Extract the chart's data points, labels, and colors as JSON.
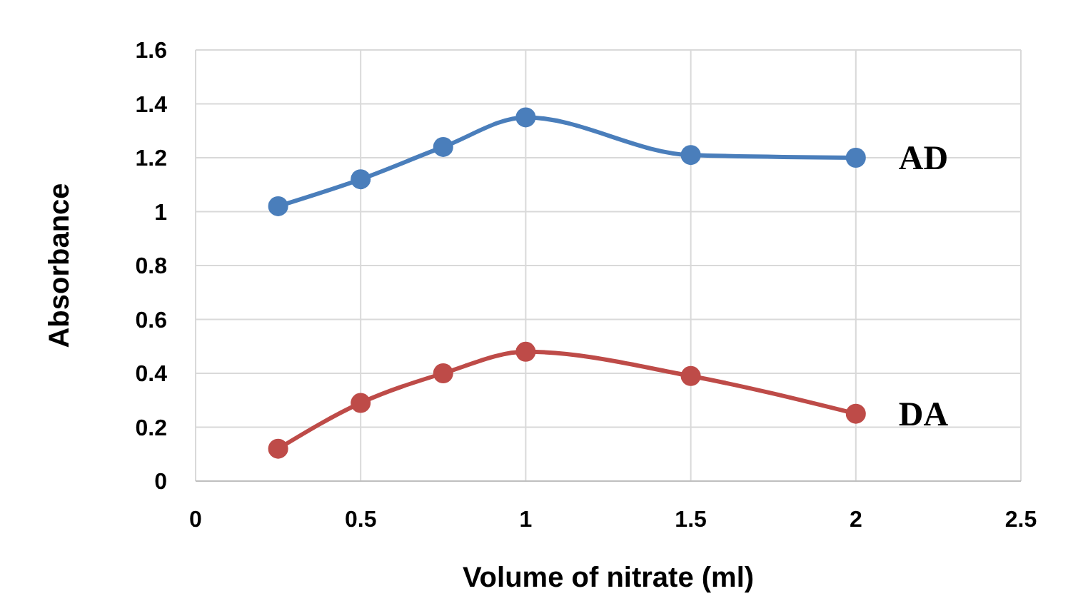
{
  "chart_data": {
    "type": "line",
    "xlabel": "Volume of nitrate (ml)",
    "ylabel": "Absorbance",
    "xlim": [
      0,
      2.5
    ],
    "xticks": [
      0,
      0.5,
      1,
      1.5,
      2,
      2.5
    ],
    "ylim": [
      0,
      1.6
    ],
    "yticks": [
      0,
      0.2,
      0.4,
      0.6,
      0.8,
      1,
      1.2,
      1.4,
      1.6
    ],
    "grid": true,
    "marker": "circle",
    "x": [
      0.25,
      0.5,
      0.75,
      1,
      1.5,
      2
    ],
    "series": [
      {
        "name": "AD",
        "color": "#4a7ebb",
        "values": [
          1.02,
          1.12,
          1.24,
          1.35,
          1.21,
          1.2
        ]
      },
      {
        "name": "DA",
        "color": "#be4b48",
        "values": [
          0.12,
          0.29,
          0.4,
          0.48,
          0.39,
          0.25
        ]
      }
    ]
  }
}
